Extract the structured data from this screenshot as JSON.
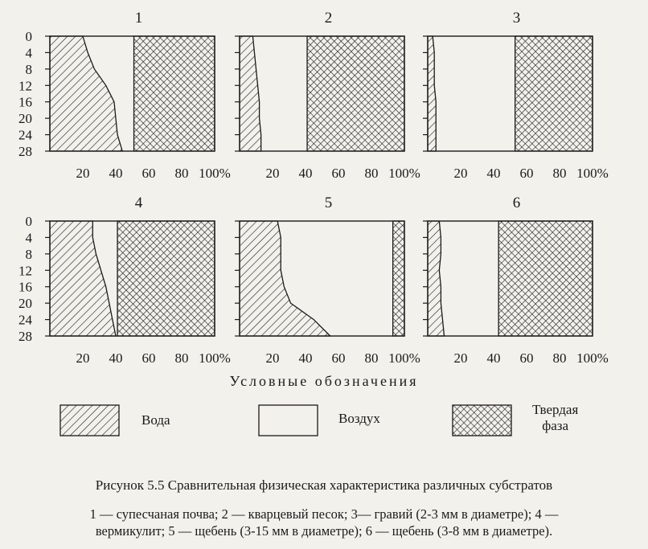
{
  "chart_data": {
    "type": "area",
    "y_axis_ticks": [
      "0",
      "4",
      "8",
      "12",
      "16",
      "20",
      "24",
      "28"
    ],
    "x_axis_ticks": [
      "20",
      "40",
      "60",
      "80",
      "100%"
    ],
    "ylim": [
      0,
      28
    ],
    "xlim": [
      0,
      100
    ],
    "panels": [
      {
        "title": "1",
        "depth": [
          0,
          4,
          8,
          12,
          16,
          20,
          24,
          28
        ],
        "water_boundary": [
          20,
          23,
          27,
          34,
          39,
          40,
          41,
          44
        ],
        "solid_boundary": [
          51,
          51,
          51,
          51,
          51,
          51,
          51,
          51
        ]
      },
      {
        "title": "2",
        "depth": [
          0,
          4,
          8,
          12,
          16,
          20,
          24,
          28
        ],
        "water_boundary": [
          8,
          9,
          10,
          11,
          12,
          12,
          13,
          13
        ],
        "solid_boundary": [
          41,
          41,
          41,
          41,
          41,
          41,
          41,
          41
        ]
      },
      {
        "title": "3",
        "depth": [
          0,
          4,
          8,
          12,
          16,
          20,
          24,
          28
        ],
        "water_boundary": [
          3,
          4,
          4,
          4,
          5,
          5,
          5,
          5
        ],
        "solid_boundary": [
          53,
          53,
          53,
          53,
          53,
          53,
          53,
          53
        ]
      },
      {
        "title": "4",
        "depth": [
          0,
          4,
          8,
          12,
          16,
          20,
          24,
          28
        ],
        "water_boundary": [
          26,
          26,
          28,
          31,
          34,
          36,
          38,
          40
        ],
        "solid_boundary": [
          41,
          41,
          41,
          41,
          41,
          41,
          41,
          41
        ]
      },
      {
        "title": "5",
        "depth": [
          0,
          4,
          8,
          12,
          16,
          20,
          24,
          28
        ],
        "water_boundary": [
          23,
          25,
          25,
          25,
          27,
          31,
          45,
          55
        ],
        "solid_boundary": [
          93,
          93,
          93,
          93,
          93,
          93,
          93,
          93
        ]
      },
      {
        "title": "6",
        "depth": [
          0,
          4,
          8,
          12,
          16,
          20,
          24,
          28
        ],
        "water_boundary": [
          7,
          8,
          8,
          7,
          8,
          8,
          9,
          10
        ],
        "solid_boundary": [
          43,
          43,
          43,
          43,
          43,
          43,
          43,
          43
        ]
      }
    ]
  },
  "legend": {
    "title": "Условные обозначения",
    "items": [
      {
        "label": "Вода",
        "pattern": "hatch"
      },
      {
        "label": "Воздух",
        "pattern": "blank"
      },
      {
        "label_line1": "Твердая",
        "label_line2": "фаза",
        "pattern": "crosshatch"
      }
    ]
  },
  "caption": "Рисунок 5.5 Сравнительная физическая характеристика различных субстратов",
  "notes_line1": "1 — супесчаная почва; 2 — кварцевый песок; 3— гравий (2-3 мм в диаметре); 4 —",
  "notes_line2": "вермикулит; 5 — щебень (3-15 мм в диаметре); 6 — щебень (3-8 мм в диаметре).",
  "colors": {
    "ink": "#1a1a1a",
    "paper": "#f3f1ec"
  }
}
